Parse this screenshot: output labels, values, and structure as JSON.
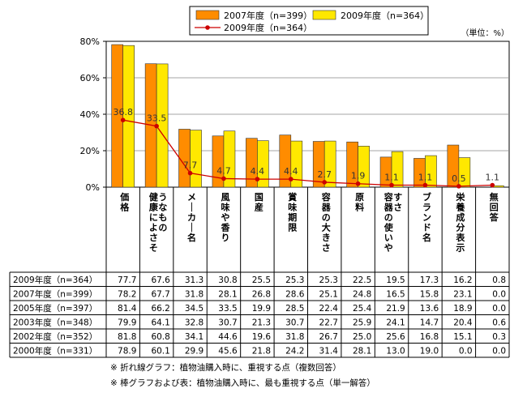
{
  "chart_data": {
    "type": "bar",
    "unit_label": "（単位：%）",
    "ylim": [
      0,
      80
    ],
    "y_ticks": [
      "0%",
      "20%",
      "40%",
      "60%",
      "80%"
    ],
    "grid": true,
    "legend_position": "top",
    "categories": [
      "価格",
      "健康によさそうなもの",
      "メーカー名",
      "風味や香り",
      "国産",
      "賞味期限",
      "容器の大きさ",
      "原料",
      "容器の使いやすさ",
      "ブランド名",
      "栄養成分表示",
      "無回答"
    ],
    "series": [
      {
        "name": "2007年度（n=399）",
        "type": "bar",
        "color": "#FF8C00",
        "values": [
          78.2,
          67.7,
          31.8,
          28.1,
          26.8,
          28.6,
          25.1,
          24.8,
          16.5,
          15.8,
          23.1,
          0.0
        ]
      },
      {
        "name": "2009年度（n=364）",
        "type": "bar",
        "color": "#FFE800",
        "values": [
          77.7,
          67.6,
          31.3,
          30.8,
          25.5,
          25.3,
          25.3,
          22.5,
          19.5,
          17.3,
          16.2,
          0.8
        ]
      },
      {
        "name": "2009年度（n=364）",
        "type": "line",
        "color": "#CC0000",
        "values": [
          36.8,
          33.5,
          7.7,
          4.7,
          4.4,
          4.4,
          2.7,
          1.9,
          1.1,
          1.1,
          0.5,
          1.1
        ],
        "labels": [
          "36.8",
          "33.5",
          "7.7",
          "4.7",
          "4.4",
          "4.4",
          "2.7",
          "1.9",
          "1.1",
          "1.1",
          "0.5",
          "1.1"
        ]
      }
    ],
    "table": {
      "rows": [
        {
          "label": "2009年度（n=364）",
          "values": [
            "77.7",
            "67.6",
            "31.3",
            "30.8",
            "25.5",
            "25.3",
            "25.3",
            "22.5",
            "19.5",
            "17.3",
            "16.2",
            "0.8"
          ]
        },
        {
          "label": "2007年度（n=399）",
          "values": [
            "78.2",
            "67.7",
            "31.8",
            "28.1",
            "26.8",
            "28.6",
            "25.1",
            "24.8",
            "16.5",
            "15.8",
            "23.1",
            "0.0"
          ]
        },
        {
          "label": "2005年度（n=397）",
          "values": [
            "81.4",
            "66.2",
            "34.5",
            "33.5",
            "19.9",
            "28.5",
            "22.4",
            "25.4",
            "21.9",
            "13.6",
            "18.9",
            "0.0"
          ]
        },
        {
          "label": "2003年度（n=348）",
          "values": [
            "79.9",
            "64.1",
            "32.8",
            "30.7",
            "21.3",
            "30.7",
            "22.7",
            "25.9",
            "24.1",
            "14.7",
            "20.4",
            "0.6"
          ]
        },
        {
          "label": "2002年度（n=352）",
          "values": [
            "81.8",
            "60.8",
            "34.1",
            "44.6",
            "19.6",
            "31.8",
            "26.7",
            "25.0",
            "25.6",
            "16.8",
            "15.1",
            "0.3"
          ]
        },
        {
          "label": "2000年度（n=331）",
          "values": [
            "78.9",
            "60.1",
            "29.9",
            "45.6",
            "21.8",
            "24.2",
            "31.4",
            "28.1",
            "13.0",
            "19.0",
            "0.0",
            "0.0"
          ]
        }
      ]
    }
  },
  "notes": [
    "※ 折れ線グラフ：植物油購入時に、重視する点（複数回答）",
    "※ 棒グラフおよび表：植物油購入時に、最も重視する点（単一解答）"
  ]
}
